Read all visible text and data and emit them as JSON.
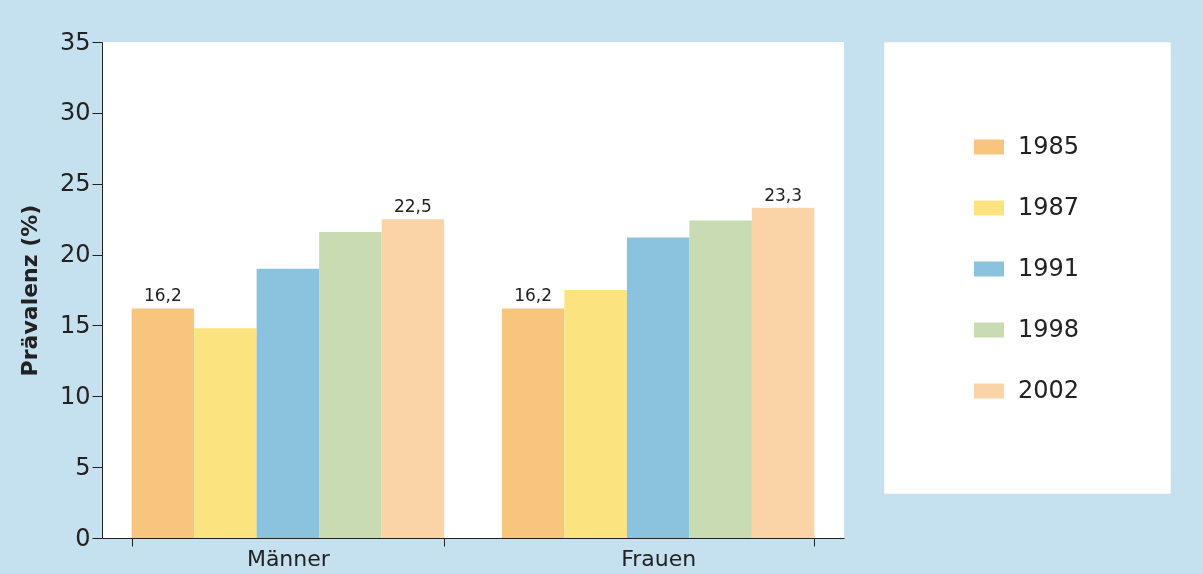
{
  "chart_data": {
    "type": "bar",
    "ylabel": "Prävalenz (%)",
    "categories": [
      "Männer",
      "Frauen"
    ],
    "series": [
      {
        "name": "1985",
        "color": "#f8c57f",
        "values": [
          16.2,
          16.2
        ],
        "value_labels": [
          "16,2",
          "16,2"
        ]
      },
      {
        "name": "1987",
        "color": "#fbe47f",
        "values": [
          14.8,
          17.5
        ],
        "value_labels": [
          null,
          null
        ]
      },
      {
        "name": "1991",
        "color": "#8bc3de",
        "values": [
          19.0,
          21.2
        ],
        "value_labels": [
          null,
          null
        ]
      },
      {
        "name": "1998",
        "color": "#c9dbb3",
        "values": [
          21.6,
          22.4
        ],
        "value_labels": [
          null,
          null
        ]
      },
      {
        "name": "2002",
        "color": "#fad4a6",
        "values": [
          22.5,
          23.3
        ],
        "value_labels": [
          "22,5",
          "23,3"
        ]
      }
    ],
    "ylim": [
      0,
      35
    ],
    "yticks": [
      0,
      5,
      10,
      15,
      20,
      25,
      30,
      35
    ],
    "grid": false,
    "legend": "right"
  }
}
